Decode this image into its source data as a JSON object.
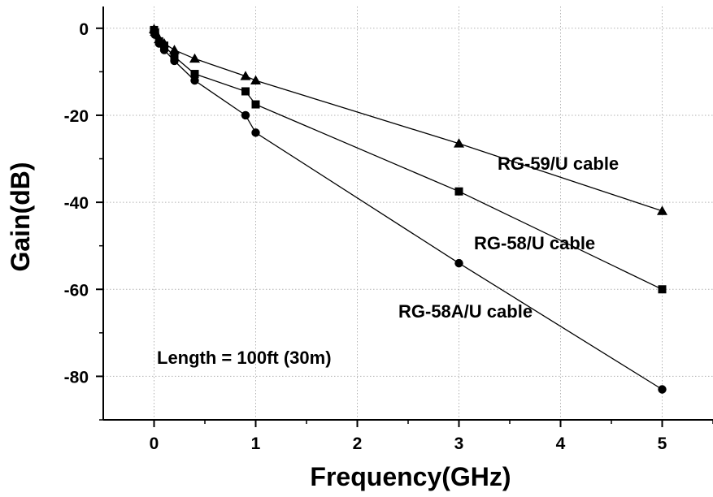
{
  "chart_data": {
    "type": "line",
    "xlabel": "Frequency(GHz)",
    "ylabel": "Gain(dB)",
    "xlim": [
      -0.5,
      5.5
    ],
    "ylim": [
      -90,
      5
    ],
    "x_ticks": [
      0,
      1,
      2,
      3,
      4,
      5
    ],
    "y_ticks": [
      0,
      -20,
      -40,
      -60,
      -80
    ],
    "grid": true,
    "legend": "none (series labeled inline)",
    "series": [
      {
        "name": "RG-59/U cable",
        "marker": "triangle",
        "x": [
          0,
          0.01,
          0.05,
          0.1,
          0.2,
          0.4,
          0.9,
          1,
          3,
          5
        ],
        "y": [
          -0.2,
          -0.8,
          -2.5,
          -3.5,
          -5,
          -7,
          -11,
          -12,
          -26.5,
          -42
        ]
      },
      {
        "name": "RG-58/U cable",
        "marker": "square",
        "x": [
          0,
          0.01,
          0.05,
          0.1,
          0.2,
          0.4,
          0.9,
          1,
          3,
          5
        ],
        "y": [
          -0.4,
          -1,
          -3,
          -4,
          -6.5,
          -10.5,
          -14.5,
          -17.5,
          -37.5,
          -60
        ]
      },
      {
        "name": "RG-58A/U cable",
        "marker": "circle",
        "x": [
          0,
          0.01,
          0.05,
          0.1,
          0.2,
          0.4,
          0.9,
          1,
          3,
          5
        ],
        "y": [
          -0.5,
          -1.5,
          -3.5,
          -5,
          -7.5,
          -12,
          -20,
          -24,
          -54,
          -83
        ]
      }
    ],
    "annotations": [
      {
        "text": "Length = 100ft (30m)"
      }
    ]
  }
}
